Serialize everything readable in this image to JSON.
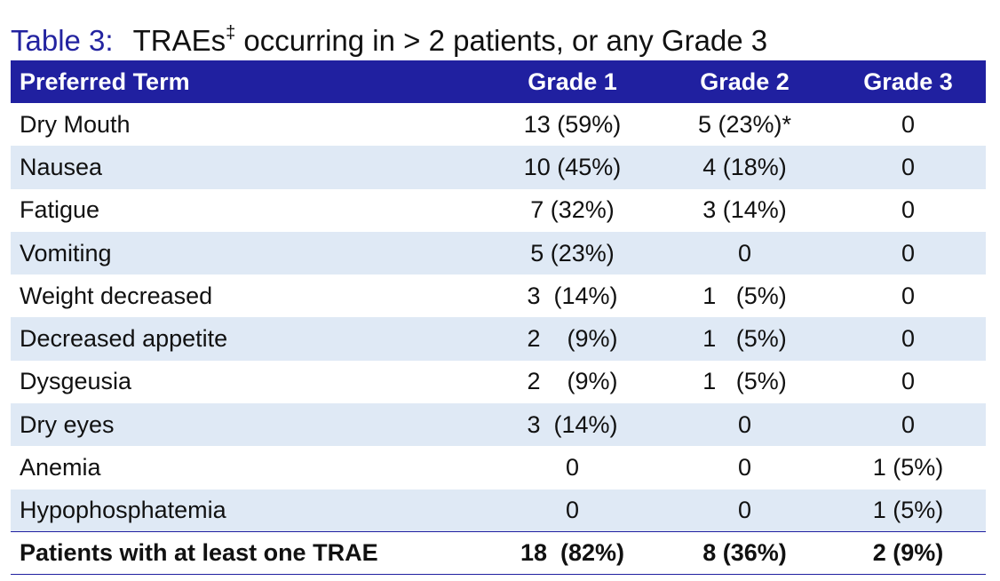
{
  "title": {
    "label": "Table 3:",
    "text": "TRAEs",
    "sup": "‡",
    "rest": " occurring in > 2 patients, or any Grade 3"
  },
  "header": [
    "Preferred Term",
    "Grade 1",
    "Grade 2",
    "Grade 3"
  ],
  "rows": [
    {
      "term": "Dry Mouth",
      "g1": "13 (59%)",
      "g2": "5 (23%)*",
      "g3": "0"
    },
    {
      "term": "Nausea",
      "g1": "10 (45%)",
      "g2": "4 (18%)",
      "g3": "0"
    },
    {
      "term": "Fatigue",
      "g1": "7 (32%)",
      "g2": "3 (14%)",
      "g3": "0"
    },
    {
      "term": "Vomiting",
      "g1": "5 (23%)",
      "g2": "0",
      "g3": "0"
    },
    {
      "term": "Weight decreased",
      "g1": "3  (14%)",
      "g2": "1   (5%)",
      "g3": "0"
    },
    {
      "term": "Decreased appetite",
      "g1": "2    (9%)",
      "g2": "1   (5%)",
      "g3": "0"
    },
    {
      "term": "Dysgeusia",
      "g1": "2    (9%)",
      "g2": "1   (5%)",
      "g3": "0"
    },
    {
      "term": "Dry eyes",
      "g1": "3  (14%)",
      "g2": "0",
      "g3": "0"
    },
    {
      "term": "Anemia",
      "g1": "0",
      "g2": "0",
      "g3": "1 (5%)"
    },
    {
      "term": "Hypophosphatemia",
      "g1": "0",
      "g2": "0",
      "g3": "1 (5%)"
    }
  ],
  "total": {
    "term": "Patients with at least one TRAE",
    "g1": "18  (82%)",
    "g2": "8 (36%)",
    "g3": "2 (9%)"
  },
  "colors": {
    "header_bg": "#2020a0",
    "title_label": "#2323a0",
    "stripe": "#dfe9f5"
  }
}
